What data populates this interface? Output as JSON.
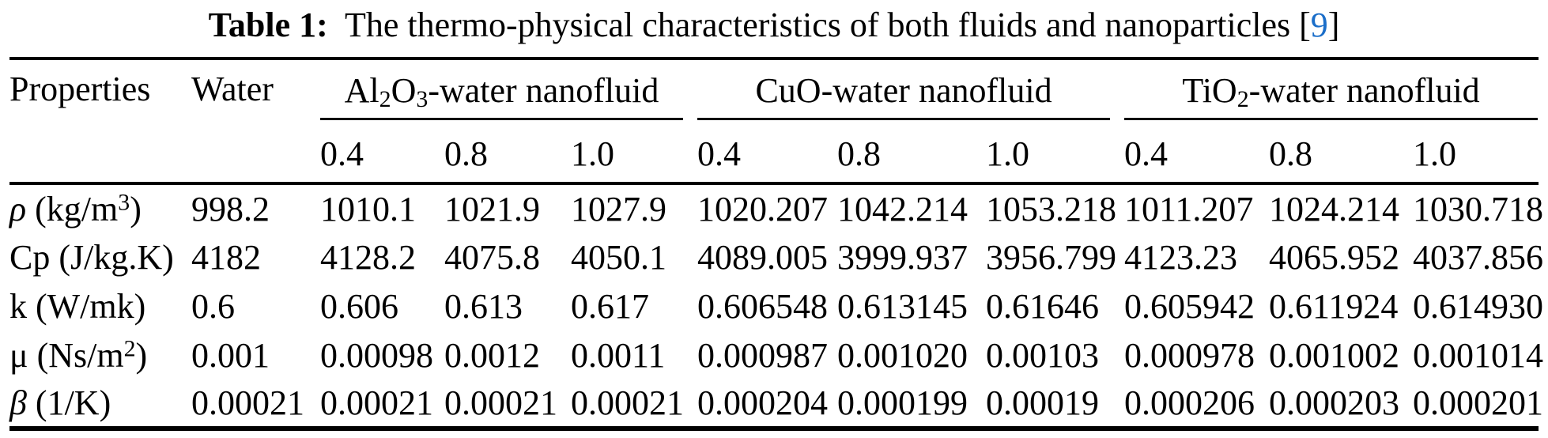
{
  "colors": {
    "citation_link": "#1b6ec9",
    "text": "#000000",
    "rule": "#000000"
  },
  "caption": {
    "segments": [
      {
        "t": "Table 1:",
        "b": true
      },
      {
        "t": "  The thermo-physical characteristics of both fluids and nanoparticles "
      },
      {
        "t": "["
      },
      {
        "t": "9",
        "link": true
      },
      {
        "t": "]"
      }
    ]
  },
  "table": {
    "properties_header": "Properties",
    "water_header": "Water",
    "groups": [
      {
        "label_segments": [
          {
            "t": "Al"
          },
          {
            "sub": "2"
          },
          {
            "t": "O"
          },
          {
            "sub": "3"
          },
          {
            "t": "-water nanofluid"
          }
        ],
        "fractions": [
          "0.4",
          "0.8",
          "1.0"
        ]
      },
      {
        "label_segments": [
          {
            "t": "CuO-water nanofluid"
          }
        ],
        "fractions": [
          "0.4",
          "0.8",
          "1.0"
        ]
      },
      {
        "label_segments": [
          {
            "t": "TiO"
          },
          {
            "sub": "2"
          },
          {
            "t": "-water nanofluid"
          }
        ],
        "fractions": [
          "0.4",
          "0.8",
          "1.0"
        ]
      }
    ],
    "rows": [
      {
        "label_segments": [
          {
            "t": "ρ",
            "i": true
          },
          {
            "t": " (kg/m"
          },
          {
            "sup": "3"
          },
          {
            "t": ")"
          }
        ],
        "values": [
          "998.2",
          "1010.1",
          "1021.9",
          "1027.9",
          "1020.207",
          "1042.214",
          "1053.218",
          "1011.207",
          "1024.214",
          "1030.718"
        ]
      },
      {
        "label_segments": [
          {
            "t": "Cp (J/kg.K)"
          }
        ],
        "values": [
          "4182",
          "4128.2",
          "4075.8",
          "4050.1",
          "4089.005",
          "3999.937",
          "3956.799",
          "4123.23",
          "4065.952",
          "4037.856"
        ]
      },
      {
        "label_segments": [
          {
            "t": "k (W/mk)"
          }
        ],
        "values": [
          "0.6",
          "0.606",
          "0.613",
          "0.617",
          "0.606548",
          "0.613145",
          "0.61646",
          "0.605942",
          "0.611924",
          "0.614930"
        ]
      },
      {
        "label_segments": [
          {
            "t": "μ (Ns/m"
          },
          {
            "sup": "2"
          },
          {
            "t": ")"
          }
        ],
        "values": [
          "0.001",
          "0.00098",
          "0.0012",
          "0.0011",
          "0.000987",
          "0.001020",
          "0.00103",
          "0.000978",
          "0.001002",
          "0.001014"
        ]
      },
      {
        "label_segments": [
          {
            "t": "β",
            "i": true
          },
          {
            "t": " (1/K)"
          }
        ],
        "values": [
          "0.00021",
          "0.00021",
          "0.00021",
          "0.00021",
          "0.000204",
          "0.000199",
          "0.00019",
          "0.000206",
          "0.000203",
          "0.000201"
        ]
      }
    ]
  }
}
